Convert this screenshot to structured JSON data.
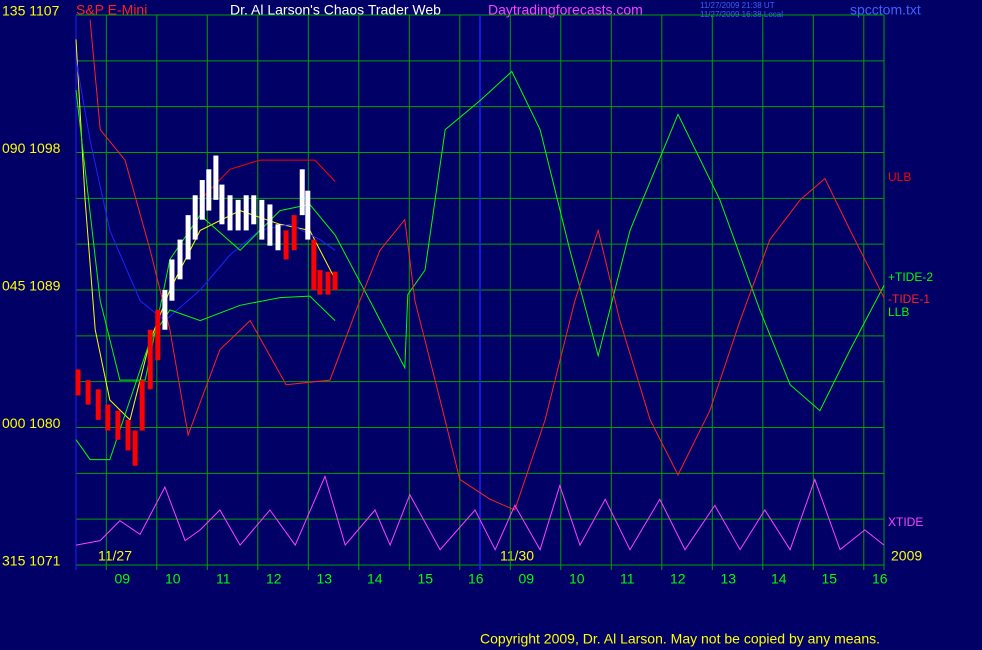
{
  "chart_data": {
    "type": "line",
    "title": "Dr. Al Larson's Chaos Trader Web",
    "instrument": "S&P E-Mini",
    "site": "Daytradingforecasts.com",
    "timestamps": [
      "11/27/2009 21:38 UT",
      "11/27/2009 16:38 Local"
    ],
    "file": "spcctom.txt",
    "copyright": "Copyright 2009, Dr. Al Larson. May not be copied by any means.",
    "day_labels": [
      "11/27",
      "11/30",
      "2009"
    ],
    "ylim": [
      1071,
      1107
    ],
    "yticks": [
      {
        "value": 1107,
        "label": "135 1107"
      },
      {
        "value": 1098,
        "label": "090 1098"
      },
      {
        "value": 1089,
        "label": "045 1089"
      },
      {
        "value": 1080,
        "label": "000 1080"
      },
      {
        "value": 1071,
        "label": "315 1071"
      }
    ],
    "ygrid": [
      1071,
      1074,
      1077,
      1080,
      1083,
      1086,
      1089,
      1092,
      1095,
      1098,
      1101,
      1104,
      1107
    ],
    "xlim": [
      0,
      16
    ],
    "xticks": [
      {
        "value": 0.6,
        "label": "09"
      },
      {
        "value": 1.6,
        "label": "10"
      },
      {
        "value": 2.6,
        "label": "11"
      },
      {
        "value": 3.6,
        "label": "12"
      },
      {
        "value": 4.6,
        "label": "13"
      },
      {
        "value": 5.6,
        "label": "14"
      },
      {
        "value": 6.6,
        "label": "15"
      },
      {
        "value": 7.6,
        "label": "16"
      },
      {
        "value": 8.6,
        "label": "09"
      },
      {
        "value": 9.6,
        "label": "10"
      },
      {
        "value": 10.6,
        "label": "11"
      },
      {
        "value": 11.6,
        "label": "12"
      },
      {
        "value": 12.6,
        "label": "13"
      },
      {
        "value": 13.6,
        "label": "14"
      },
      {
        "value": 14.6,
        "label": "15"
      },
      {
        "value": 15.6,
        "label": "16"
      }
    ],
    "day_break": 8.0,
    "grid": true,
    "candles": {
      "x": [
        0.04,
        0.24,
        0.44,
        0.63,
        0.83,
        1.03,
        1.17,
        1.31,
        1.47,
        1.62,
        1.76,
        1.9,
        2.06,
        2.22,
        2.36,
        2.5,
        2.63,
        2.77,
        2.89,
        3.05,
        3.21,
        3.37,
        3.52,
        3.68,
        3.84,
        4.0,
        4.16,
        4.32,
        4.48,
        4.59,
        4.71,
        4.83,
        4.99,
        5.13
      ],
      "high": [
        1083.8,
        1083.1,
        1082.5,
        1081.5,
        1081.1,
        1080.5,
        1079.8,
        1083.1,
        1086.4,
        1087.7,
        1089.0,
        1091.0,
        1092.3,
        1093.9,
        1095.2,
        1096.2,
        1096.9,
        1097.8,
        1095.9,
        1095.2,
        1094.9,
        1095.2,
        1095.2,
        1094.9,
        1094.6,
        1093.3,
        1092.9,
        1093.9,
        1096.9,
        1095.5,
        1092.3,
        1090.3,
        1090.2,
        1090.2
      ],
      "low": [
        1082.1,
        1081.5,
        1080.5,
        1079.8,
        1079.2,
        1078.5,
        1077.5,
        1079.8,
        1082.5,
        1084.4,
        1086.4,
        1088.3,
        1089.7,
        1091.0,
        1092.3,
        1093.6,
        1094.2,
        1094.9,
        1093.3,
        1092.9,
        1092.9,
        1092.9,
        1093.3,
        1092.3,
        1091.9,
        1091.6,
        1091.0,
        1091.6,
        1093.9,
        1092.3,
        1089.0,
        1088.7,
        1088.7,
        1089.0
      ],
      "colors": [
        "#ff0000",
        "#ff0000",
        "#ff0000",
        "#ff0000",
        "#ff0000",
        "#ff0000",
        "#ff0000",
        "#ff0000",
        "#ff0000",
        "#ff0000",
        "#ffffff",
        "#ffffff",
        "#ffffff",
        "#ffffff",
        "#ffffff",
        "#ffffff",
        "#ffffff",
        "#ffffff",
        "#ffffff",
        "#ffffff",
        "#ffffff",
        "#ffffff",
        "#ffffff",
        "#ffffff",
        "#ffffff",
        "#ffffff",
        "#ff0000",
        "#ff0000",
        "#ffffff",
        "#ffffff",
        "#ff0000",
        "#ff0000",
        "#ff0000",
        "#ff0000"
      ]
    },
    "series": [
      {
        "color": "#ffff00",
        "x": [
          0,
          0.18,
          0.38,
          0.67,
          1.07,
          1.47,
          1.86,
          2.46,
          3.25,
          4.04,
          4.63,
          5.13
        ],
        "values": [
          1105.4,
          1094.9,
          1086.4,
          1081.8,
          1080.5,
          1085.7,
          1089.0,
          1092.9,
          1094.2,
          1093.3,
          1092.9,
          1089.7
        ]
      },
      {
        "color": "#2020ff",
        "x": [
          0,
          0.28,
          0.67,
          1.27,
          1.76,
          2.46,
          3.05,
          3.64,
          4.24,
          4.83,
          5.13
        ],
        "values": [
          1104.1,
          1098.8,
          1092.9,
          1088.3,
          1087.0,
          1089.0,
          1091.3,
          1092.9,
          1093.3,
          1092.3,
          1091.6
        ]
      },
      {
        "name": "ULB",
        "color": "#ff0000",
        "x": [
          2.46,
          3.05,
          3.64,
          4.44,
          4.73,
          5.13
        ],
        "values": [
          1094.9,
          1096.9,
          1097.5,
          1097.5,
          1097.5,
          1096.1
        ]
      },
      {
        "name": "+TIDE-2",
        "color": "#00ff00",
        "x": [
          0,
          0.48,
          0.87,
          1.37,
          1.86,
          2.46,
          3.25,
          4.04,
          4.63,
          5.13,
          5.82,
          6.51,
          6.57,
          6.91,
          7.31,
          8.0,
          8.63,
          9.19,
          9.78,
          10.34,
          10.97,
          11.92,
          12.75,
          13.54,
          14.14,
          14.73,
          15.33,
          16.0
        ],
        "values": [
          1102.1,
          1088.3,
          1083.1,
          1083.1,
          1091.0,
          1093.9,
          1091.6,
          1094.2,
          1094.6,
          1092.6,
          1088.3,
          1083.9,
          1088.7,
          1090.3,
          1099.5,
          1101.4,
          1103.3,
          1099.5,
          1091.6,
          1084.7,
          1092.9,
          1100.5,
          1094.9,
          1087.7,
          1082.8,
          1081.1,
          1085.1,
          1089.3
        ]
      },
      {
        "name": "-TIDE-1",
        "color": "#ff2020",
        "x": [
          0.28,
          0.48,
          0.97,
          1.47,
          1.86,
          2.22,
          2.85,
          3.45,
          4.16,
          5.03,
          5.62,
          6.02,
          6.51,
          6.71,
          7.21,
          7.6,
          8.2,
          8.69,
          9.29,
          9.88,
          10.34,
          10.77,
          11.37,
          11.92,
          12.55,
          13.15,
          13.74,
          14.34,
          14.83,
          15.33,
          16.0
        ],
        "values": [
          1106.7,
          1099.5,
          1097.5,
          1091.6,
          1086.4,
          1079.5,
          1085.1,
          1087.0,
          1082.8,
          1083.1,
          1088.3,
          1091.6,
          1093.6,
          1088.3,
          1081.8,
          1076.6,
          1075.3,
          1074.6,
          1080.5,
          1088.3,
          1092.9,
          1087.0,
          1080.5,
          1076.9,
          1081.1,
          1087.0,
          1092.3,
          1094.9,
          1096.3,
          1092.9,
          1088.5
        ]
      },
      {
        "name": "LLB",
        "color": "#00ff00",
        "x": [
          0,
          0.28,
          0.67,
          1.07,
          1.47,
          1.86,
          2.46,
          3.25,
          4.04,
          4.63,
          5.13
        ],
        "values": [
          1079.2,
          1077.9,
          1077.9,
          1081.8,
          1085.7,
          1087.7,
          1087.0,
          1088.0,
          1088.5,
          1088.6,
          1087.0
        ]
      },
      {
        "name": "XTIDE",
        "color": "#ff40ff",
        "x": [
          0,
          0.48,
          0.87,
          1.27,
          1.76,
          2.16,
          2.46,
          2.85,
          3.25,
          3.84,
          4.34,
          4.93,
          5.33,
          5.92,
          6.22,
          6.61,
          7.21,
          7.9,
          8.3,
          8.69,
          9.19,
          9.58,
          9.98,
          10.48,
          10.97,
          11.56,
          12.06,
          12.65,
          13.15,
          13.64,
          14.14,
          14.63,
          15.13,
          15.62,
          16.0
        ],
        "values": [
          1072.3,
          1072.6,
          1073.9,
          1073.0,
          1076.1,
          1072.6,
          1073.3,
          1074.6,
          1072.3,
          1074.6,
          1072.3,
          1076.8,
          1072.3,
          1074.6,
          1072.3,
          1075.6,
          1072.0,
          1074.6,
          1072.0,
          1074.9,
          1072.0,
          1076.2,
          1072.3,
          1075.3,
          1072.0,
          1075.3,
          1072.0,
          1074.9,
          1072.0,
          1074.6,
          1072.0,
          1076.6,
          1072.0,
          1073.3,
          1072.3
        ]
      }
    ]
  }
}
